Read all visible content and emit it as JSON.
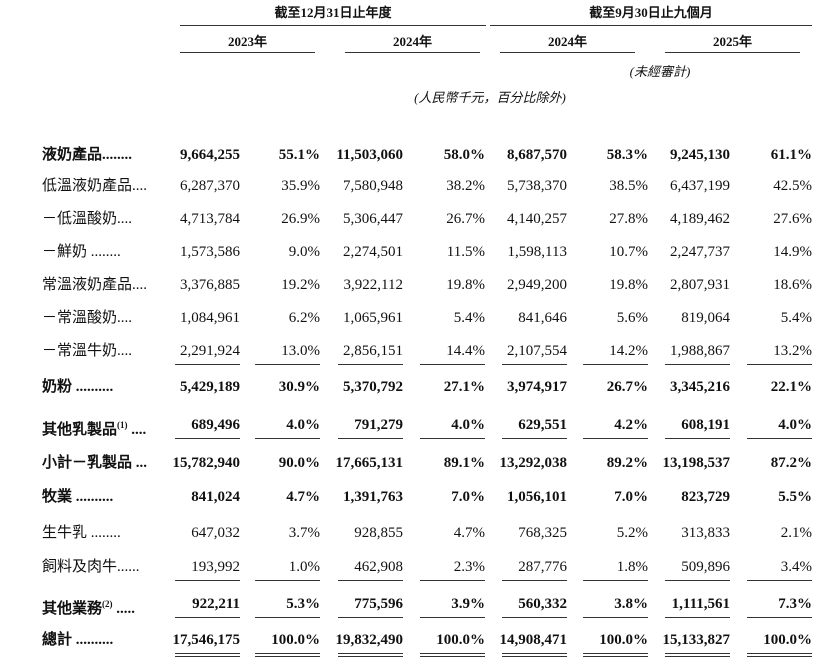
{
  "header": {
    "period_groups": [
      {
        "label": "截至12月31日止年度",
        "years": [
          "2023年",
          "2024年"
        ]
      },
      {
        "label": "截至9月30日止九個月",
        "years": [
          "2024年",
          "2025年"
        ]
      }
    ],
    "unaudited_note": "(未經審計)",
    "unit_note": "(人民幣千元，百分比除外)"
  },
  "table": {
    "rows": [
      {
        "label": "液奶產品........",
        "bold": true,
        "values": [
          "9,664,255",
          "55.1%",
          "11,503,060",
          "58.0%",
          "8,687,570",
          "58.3%",
          "9,245,130",
          "61.1%"
        ]
      },
      {
        "label": "低溫液奶產品....",
        "bold": false,
        "values": [
          "6,287,370",
          "35.9%",
          "7,580,948",
          "38.2%",
          "5,738,370",
          "38.5%",
          "6,437,199",
          "42.5%"
        ]
      },
      {
        "label": "－低溫酸奶....",
        "bold": false,
        "values": [
          "4,713,784",
          "26.9%",
          "5,306,447",
          "26.7%",
          "4,140,257",
          "27.8%",
          "4,189,462",
          "27.6%"
        ]
      },
      {
        "label": "－鮮奶 ........",
        "bold": false,
        "values": [
          "1,573,586",
          "9.0%",
          "2,274,501",
          "11.5%",
          "1,598,113",
          "10.7%",
          "2,247,737",
          "14.9%"
        ]
      },
      {
        "label": "常溫液奶產品....",
        "bold": false,
        "values": [
          "3,376,885",
          "19.2%",
          "3,922,112",
          "19.8%",
          "2,949,200",
          "19.8%",
          "2,807,931",
          "18.6%"
        ]
      },
      {
        "label": "－常溫酸奶....",
        "bold": false,
        "values": [
          "1,084,961",
          "6.2%",
          "1,065,961",
          "5.4%",
          "841,646",
          "5.6%",
          "819,064",
          "5.4%"
        ]
      },
      {
        "label": "－常溫牛奶....",
        "bold": false,
        "rule_below": "single",
        "values": [
          "2,291,924",
          "13.0%",
          "2,856,151",
          "14.4%",
          "2,107,554",
          "14.2%",
          "1,988,867",
          "13.2%"
        ]
      },
      {
        "label": "奶粉 ..........",
        "bold": true,
        "values": [
          "5,429,189",
          "30.9%",
          "5,370,792",
          "27.1%",
          "3,974,917",
          "26.7%",
          "3,345,216",
          "22.1%"
        ]
      },
      {
        "label": "其他乳製品",
        "note": "(1)",
        "tail": " ....",
        "bold": true,
        "rule_below": "single",
        "values": [
          "689,496",
          "4.0%",
          "791,279",
          "4.0%",
          "629,551",
          "4.2%",
          "608,191",
          "4.0%"
        ]
      },
      {
        "label": "小計－乳製品 ...",
        "bold": true,
        "values": [
          "15,782,940",
          "90.0%",
          "17,665,131",
          "89.1%",
          "13,292,038",
          "89.2%",
          "13,198,537",
          "87.2%"
        ]
      },
      {
        "label": "牧業 ..........",
        "bold": true,
        "values": [
          "841,024",
          "4.7%",
          "1,391,763",
          "7.0%",
          "1,056,101",
          "7.0%",
          "823,729",
          "5.5%"
        ]
      },
      {
        "label": "生牛乳 ........",
        "bold": false,
        "values": [
          "647,032",
          "3.7%",
          "928,855",
          "4.7%",
          "768,325",
          "5.2%",
          "313,833",
          "2.1%"
        ]
      },
      {
        "label": "飼料及肉牛......",
        "bold": false,
        "rule_below": "single",
        "values": [
          "193,992",
          "1.0%",
          "462,908",
          "2.3%",
          "287,776",
          "1.8%",
          "509,896",
          "3.4%"
        ]
      },
      {
        "label": "其他業務",
        "note": "(2)",
        "tail": " .....",
        "bold": true,
        "rule_below": "single",
        "values": [
          "922,211",
          "5.3%",
          "775,596",
          "3.9%",
          "560,332",
          "3.8%",
          "1,111,561",
          "7.3%"
        ]
      },
      {
        "label": "總計 ..........",
        "bold": true,
        "rule_below": "double",
        "values": [
          "17,546,175",
          "100.0%",
          "19,832,490",
          "100.0%",
          "14,908,471",
          "100.0%",
          "15,133,827",
          "100.0%"
        ]
      }
    ]
  }
}
